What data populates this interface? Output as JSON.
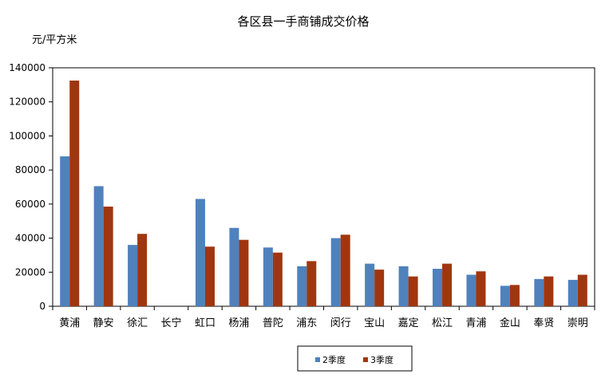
{
  "chart_data": {
    "type": "bar",
    "title": "各区县一手商铺成交价格",
    "ylabel": "元/平方米",
    "xlabel": "",
    "ylim": [
      0,
      140000
    ],
    "yticks": [
      0,
      20000,
      40000,
      60000,
      80000,
      100000,
      120000,
      140000
    ],
    "ytick_labels": [
      "0",
      "20000",
      "40000",
      "60000",
      "80000",
      "100000",
      "120000",
      "140000"
    ],
    "categories": [
      "黄浦",
      "静安",
      "徐汇",
      "长宁",
      "虹口",
      "杨浦",
      "普陀",
      "浦东",
      "闵行",
      "宝山",
      "嘉定",
      "松江",
      "青浦",
      "金山",
      "奉贤",
      "崇明"
    ],
    "series": [
      {
        "name": "2季度",
        "color": "#4f81bd",
        "values": [
          88000,
          70500,
          36000,
          0,
          63000,
          46000,
          34500,
          23500,
          40000,
          25000,
          23500,
          22000,
          18500,
          12000,
          16000,
          15500
        ]
      },
      {
        "name": "3季度",
        "color": "#a0360f",
        "values": [
          132500,
          58500,
          42500,
          0,
          35000,
          39000,
          31500,
          26500,
          42000,
          21500,
          17500,
          25000,
          20500,
          12500,
          17500,
          18500
        ]
      }
    ],
    "grid": false,
    "legend_position": "bottom-center"
  }
}
